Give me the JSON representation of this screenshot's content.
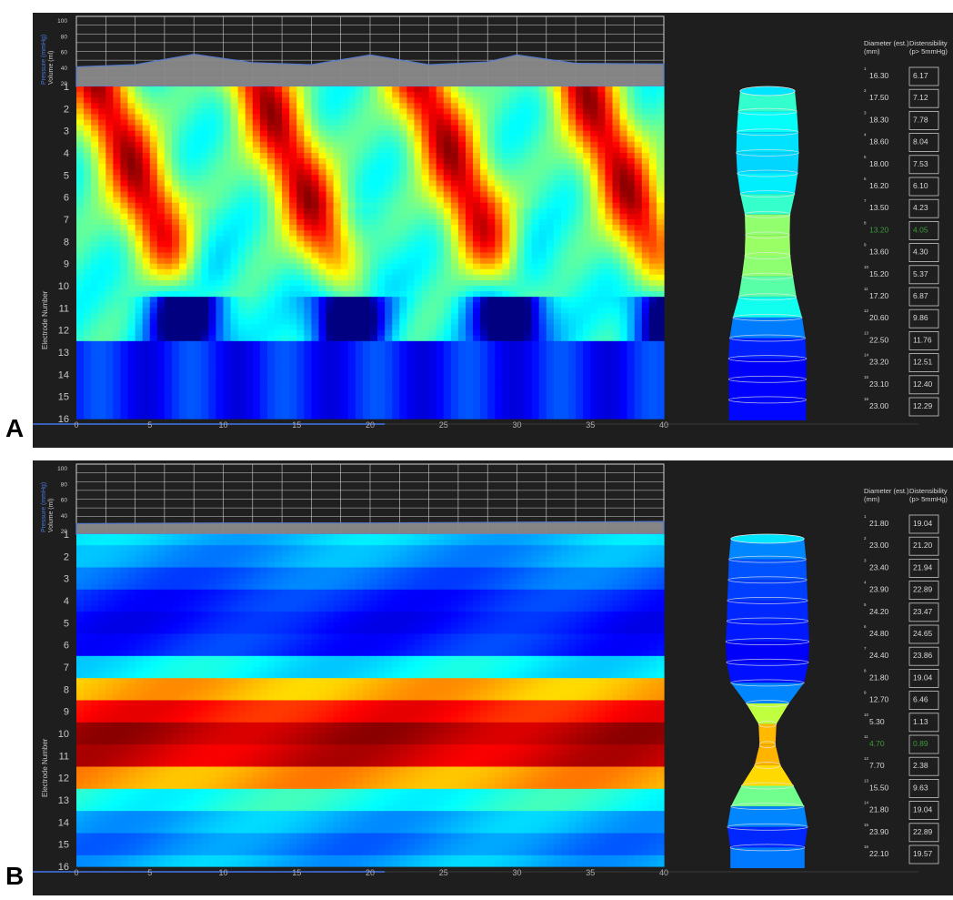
{
  "panels": [
    {
      "label": "A",
      "pressure_axis_label": "Pressure (mmHg)",
      "volume_axis_label": "Volume (ml)",
      "pressure_ticks": [
        "100",
        "80",
        "60",
        "40",
        "20"
      ],
      "ylabel": "Electrode Number",
      "electrodes": [
        "1",
        "2",
        "3",
        "4",
        "5",
        "6",
        "7",
        "8",
        "9",
        "10",
        "11",
        "12",
        "13",
        "14",
        "15",
        "16"
      ],
      "x_ticks": [
        "0",
        "5",
        "10",
        "15",
        "20",
        "25",
        "30",
        "35",
        "40"
      ],
      "table_header_col1": "Diameter (est.)\n(mm)",
      "table_header_col2": "Distensibility\n(p> 5mmHg)",
      "diameters": [
        "16.30",
        "17.50",
        "18.30",
        "18.60",
        "18.00",
        "16.20",
        "13.50",
        "13.20",
        "13.60",
        "15.20",
        "17.20",
        "20.60",
        "22.50",
        "23.20",
        "23.10",
        "23.00"
      ],
      "distensibility": [
        "6.17",
        "7.12",
        "7.78",
        "8.04",
        "7.53",
        "6.10",
        "4.23",
        "4.05",
        "4.30",
        "5.37",
        "6.87",
        "9.86",
        "11.76",
        "12.51",
        "12.40",
        "12.29"
      ],
      "highlight_index": 7
    },
    {
      "label": "B",
      "pressure_axis_label": "Pressure (mmHg)",
      "volume_axis_label": "Volume (ml)",
      "pressure_ticks": [
        "100",
        "80",
        "60",
        "40",
        "20"
      ],
      "ylabel": "Electrode Number",
      "electrodes": [
        "1",
        "2",
        "3",
        "4",
        "5",
        "6",
        "7",
        "8",
        "9",
        "10",
        "11",
        "12",
        "13",
        "14",
        "15",
        "16"
      ],
      "x_ticks": [
        "0",
        "5",
        "10",
        "15",
        "20",
        "25",
        "30",
        "35",
        "40"
      ],
      "table_header_col1": "Diameter (est.)\n(mm)",
      "table_header_col2": "Distensibility\n(p> 5mmHg)",
      "diameters": [
        "21.80",
        "23.00",
        "23.40",
        "23.90",
        "24.20",
        "24.80",
        "24.40",
        "21.80",
        "12.70",
        "5.30",
        "4.70",
        "7.70",
        "15.50",
        "21.80",
        "23.90",
        "22.10"
      ],
      "distensibility": [
        "19.04",
        "21.20",
        "21.94",
        "22.89",
        "23.47",
        "24.65",
        "23.86",
        "19.04",
        "6.46",
        "1.13",
        "0.89",
        "2.38",
        "9.63",
        "19.04",
        "22.89",
        "19.57"
      ],
      "highlight_index": 10
    }
  ],
  "colors": {
    "panel_bg": "#1e1e1e",
    "grid_line": "#d0d0d0",
    "axis_text": "#c8c8c8",
    "pressure_label": "#4a7ad8",
    "highlight_text": "#3c9a3c",
    "table_text": "#d8d8d8",
    "volume_fill": "#8a8a8a"
  },
  "chart_data": [
    {
      "type": "heatmap",
      "panel": "A",
      "xlabel": "",
      "ylabel": "Electrode Number",
      "xlim": [
        0,
        40
      ],
      "electrodes": [
        1,
        2,
        3,
        4,
        5,
        6,
        7,
        8,
        9,
        10,
        11,
        12,
        13,
        14,
        15,
        16
      ],
      "colormap": "jet",
      "pressure_ylim": [
        0,
        100
      ],
      "volume_trace": {
        "x": [
          0,
          4,
          8,
          12,
          16,
          20,
          24,
          28,
          30,
          34,
          40
        ],
        "y": [
          28,
          31,
          46,
          34,
          31,
          45,
          31,
          35,
          45,
          33,
          32
        ]
      },
      "diameter_mm": [
        16.3,
        17.5,
        18.3,
        18.6,
        18.0,
        16.2,
        13.5,
        13.2,
        13.6,
        15.2,
        17.2,
        20.6,
        22.5,
        23.2,
        23.1,
        23.0
      ],
      "distensibility": [
        6.17,
        7.12,
        7.78,
        8.04,
        7.53,
        6.1,
        4.23,
        4.05,
        4.3,
        5.37,
        6.87,
        9.86,
        11.76,
        12.51,
        12.4,
        12.29
      ]
    },
    {
      "type": "heatmap",
      "panel": "B",
      "xlabel": "",
      "ylabel": "Electrode Number",
      "xlim": [
        0,
        40
      ],
      "electrodes": [
        1,
        2,
        3,
        4,
        5,
        6,
        7,
        8,
        9,
        10,
        11,
        12,
        13,
        14,
        15,
        16
      ],
      "colormap": "jet",
      "pressure_ylim": [
        0,
        100
      ],
      "volume_trace": {
        "x": [
          0,
          10,
          20,
          30,
          40
        ],
        "y": [
          15,
          16,
          16,
          17,
          18
        ]
      },
      "diameter_mm": [
        21.8,
        23.0,
        23.4,
        23.9,
        24.2,
        24.8,
        24.4,
        21.8,
        12.7,
        5.3,
        4.7,
        7.7,
        15.5,
        21.8,
        23.9,
        22.1
      ],
      "distensibility": [
        19.04,
        21.2,
        21.94,
        22.89,
        23.47,
        24.65,
        23.86,
        19.04,
        6.46,
        1.13,
        0.89,
        2.38,
        9.63,
        19.04,
        22.89,
        19.57
      ]
    }
  ]
}
